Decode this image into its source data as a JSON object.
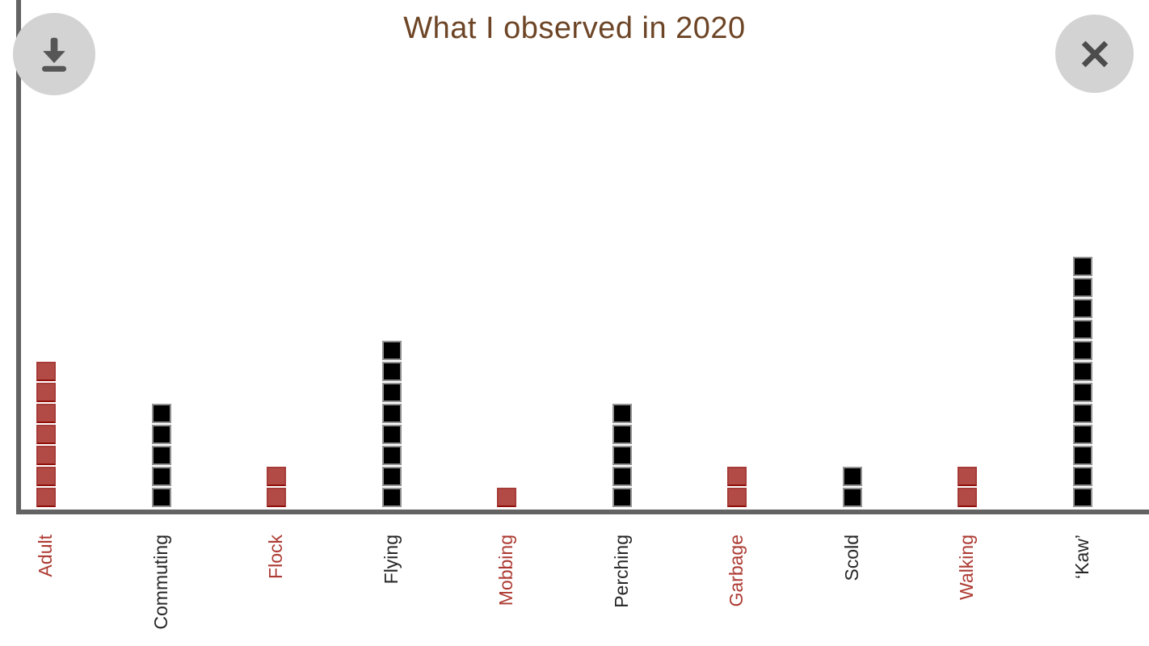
{
  "header": {
    "title": "What I observed in 2020"
  },
  "controls": {
    "download_button": {
      "icon": "download-icon"
    },
    "close_button": {
      "icon": "close-icon"
    }
  },
  "colors": {
    "title": "#6d4526",
    "axis": "#636363",
    "red_fill": "#b24b46",
    "red_border": "#a63c38",
    "red_border_bottom": "#900f0a",
    "black_fill": "#000000",
    "black_border": "#929292",
    "red_label": "#ad3a32",
    "black_label": "#262626",
    "button_bg": "#d3d3d3",
    "button_glyph": "#555555"
  },
  "chart_data": {
    "type": "bar",
    "subtype": "pictograph-unit-chart",
    "title": "What I observed in 2020",
    "categories": [
      "Adult",
      "Commuting",
      "Flock",
      "Flying",
      "Mobbing",
      "Perching",
      "Garbage",
      "Scold",
      "Walking",
      "‘Kaw’"
    ],
    "values": [
      7,
      5,
      2,
      8,
      1,
      5,
      2,
      2,
      2,
      12
    ],
    "category_colors": [
      "red",
      "black",
      "red",
      "black",
      "red",
      "black",
      "red",
      "black",
      "red",
      "black"
    ],
    "unit_value": 1,
    "xlabel": "",
    "ylabel": "",
    "ylim": [
      0,
      12
    ],
    "grid": false,
    "legend": false,
    "x_tick_rotation": -90
  }
}
